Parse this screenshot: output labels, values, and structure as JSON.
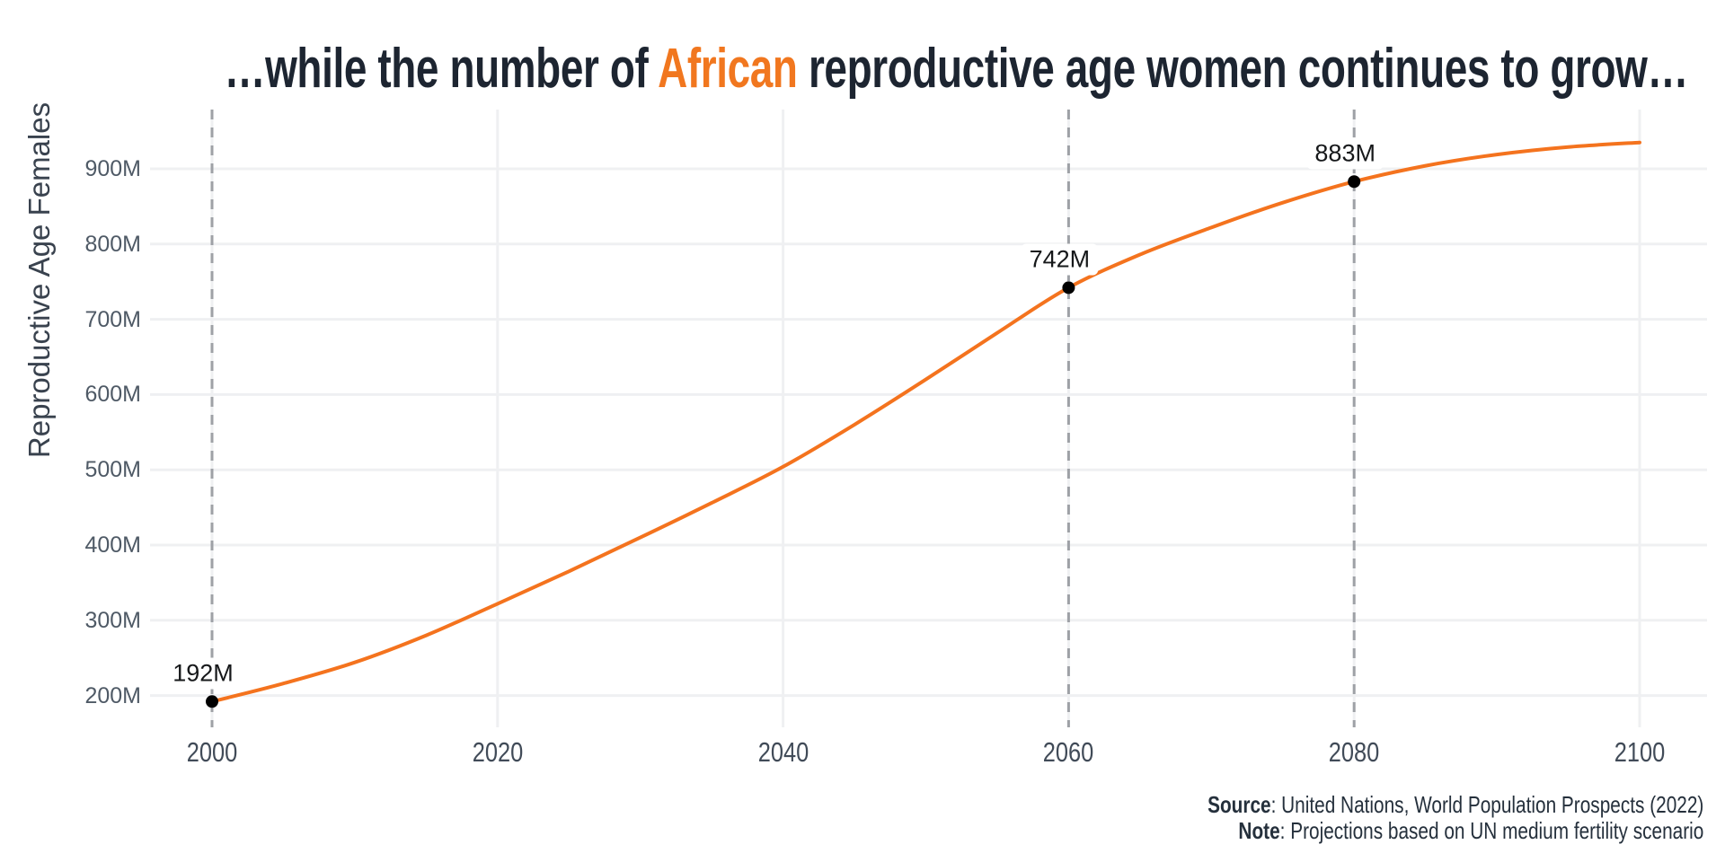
{
  "title": {
    "prefix": "…while the number of ",
    "highlight": "African",
    "suffix": " reproductive age women continues to grow…"
  },
  "y_axis_title": "Reproductive Age Females",
  "caption": {
    "source_label": "Source",
    "source_text": ": United Nations, World Population Prospects (2022)",
    "note_label": "Note",
    "note_text": ": Projections based on UN medium fertility scenario"
  },
  "colors": {
    "line": "#f4731e",
    "highlight_text": "#f1771f",
    "title_text": "#1d2531",
    "tick_text": "#4f5a66",
    "gridline": "#eff0f2",
    "dashed_line": "#9ea1a6",
    "point": "#000000",
    "background": "#ffffff"
  },
  "chart_data": {
    "type": "line",
    "title": "…while the number of African reproductive age women continues to grow…",
    "xlabel": "",
    "ylabel": "Reproductive Age Females",
    "units": "millions",
    "x": [
      2000,
      2005,
      2010,
      2015,
      2020,
      2025,
      2030,
      2035,
      2040,
      2045,
      2050,
      2055,
      2060,
      2065,
      2070,
      2075,
      2080,
      2085,
      2090,
      2095,
      2100
    ],
    "values": [
      192,
      216,
      244,
      280,
      322,
      365,
      410,
      456,
      504,
      560,
      620,
      682,
      742,
      786,
      822,
      855,
      883,
      904,
      919,
      929,
      935
    ],
    "xlim": [
      2000,
      2100
    ],
    "ylim": [
      150,
      970
    ],
    "grid": true,
    "legend_position": "none",
    "xticks": [
      {
        "value": 2000,
        "label": "2000"
      },
      {
        "value": 2020,
        "label": "2020"
      },
      {
        "value": 2040,
        "label": "2040"
      },
      {
        "value": 2060,
        "label": "2060"
      },
      {
        "value": 2080,
        "label": "2080"
      },
      {
        "value": 2100,
        "label": "2100"
      }
    ],
    "yticks": [
      {
        "value": 900,
        "label": "900M"
      },
      {
        "value": 800,
        "label": "800M"
      },
      {
        "value": 700,
        "label": "700M"
      },
      {
        "value": 600,
        "label": "600M"
      },
      {
        "value": 500,
        "label": "500M"
      },
      {
        "value": 400,
        "label": "400M"
      },
      {
        "value": 300,
        "label": "300M"
      },
      {
        "value": 200,
        "label": "200M"
      }
    ],
    "dashed_vlines": [
      2000,
      2060,
      2080
    ],
    "annotations": [
      {
        "x": 2000,
        "y": 192,
        "label": "192M"
      },
      {
        "x": 2060,
        "y": 742,
        "label": "742M"
      },
      {
        "x": 2080,
        "y": 883,
        "label": "883M"
      }
    ]
  }
}
